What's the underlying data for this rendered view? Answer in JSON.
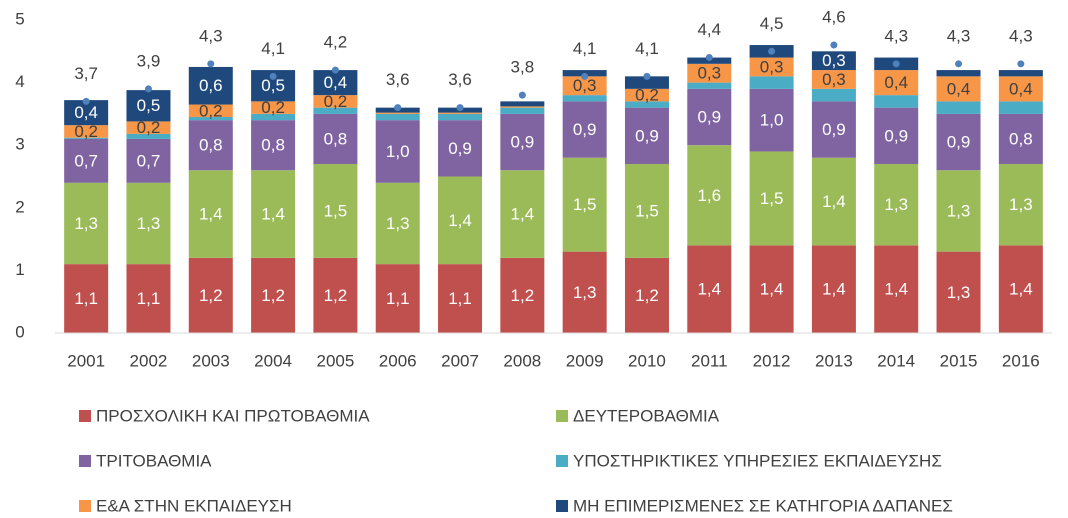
{
  "chart_data": {
    "type": "stacked_bar",
    "categories": [
      "2001",
      "2002",
      "2003",
      "2004",
      "2005",
      "2006",
      "2007",
      "2008",
      "2009",
      "2010",
      "2011",
      "2012",
      "2013",
      "2014",
      "2015",
      "2016"
    ],
    "ylim": [
      0,
      5
    ],
    "yticks": [
      0,
      1,
      2,
      3,
      4,
      5
    ],
    "grid": false,
    "legend": "bottom",
    "series": [
      {
        "name": "ΠΡΟΣΧΟΛΙΚΗ ΚΑΙ ΠΡΩΤΟΒΑΘΜΙΑ",
        "color": "#c0504d",
        "label_color": "#ffffff",
        "values": [
          1.1,
          1.1,
          1.2,
          1.2,
          1.2,
          1.1,
          1.1,
          1.2,
          1.3,
          1.2,
          1.4,
          1.4,
          1.4,
          1.4,
          1.3,
          1.4
        ],
        "value_labels": [
          "1,1",
          "1,1",
          "1,2",
          "1,2",
          "1,2",
          "1,1",
          "1,1",
          "1,2",
          "1,3",
          "1,2",
          "1,4",
          "1,4",
          "1,4",
          "1,4",
          "1,3",
          "1,4"
        ]
      },
      {
        "name": "ΔΕΥΤΕΡΟΒΑΘΜΙΑ",
        "color": "#9bbb59",
        "label_color": "#ffffff",
        "values": [
          1.3,
          1.3,
          1.4,
          1.4,
          1.5,
          1.3,
          1.4,
          1.4,
          1.5,
          1.5,
          1.6,
          1.5,
          1.4,
          1.3,
          1.3,
          1.3
        ],
        "value_labels": [
          "1,3",
          "1,3",
          "1,4",
          "1,4",
          "1,5",
          "1,3",
          "1,4",
          "1,4",
          "1,5",
          "1,5",
          "1,6",
          "1,5",
          "1,4",
          "1,3",
          "1,3",
          "1,3"
        ]
      },
      {
        "name": "ΤΡΙΤΟΒΑΘΜΙΑ",
        "color": "#8064a2",
        "label_color": "#ffffff",
        "values": [
          0.7,
          0.7,
          0.8,
          0.8,
          0.8,
          1.0,
          0.9,
          0.9,
          0.9,
          0.9,
          0.9,
          1.0,
          0.9,
          0.9,
          0.9,
          0.8
        ],
        "value_labels": [
          "0,7",
          "0,7",
          "0,8",
          "0,8",
          "0,8",
          "1,0",
          "0,9",
          "0,9",
          "0,9",
          "0,9",
          "0,9",
          "1,0",
          "0,9",
          "0,9",
          "0,9",
          "0,8"
        ]
      },
      {
        "name": "ΥΠΟΣΤΗΡΙΚΤΙΚΕΣ ΥΠΗΡΕΣΙΕΣ ΕΚΠΑΙΔΕΥΣΗΣ",
        "color": "#4bacc6",
        "label_color": "#ffffff",
        "values": [
          0.02,
          0.08,
          0.05,
          0.1,
          0.1,
          0.1,
          0.1,
          0.1,
          0.1,
          0.1,
          0.1,
          0.2,
          0.2,
          0.2,
          0.2,
          0.2
        ],
        "value_labels": [
          null,
          null,
          null,
          null,
          null,
          null,
          null,
          null,
          null,
          null,
          null,
          null,
          null,
          null,
          null,
          null
        ]
      },
      {
        "name": "Ε&Α ΣΤΗΝ ΕΚΠΑΙΔΕΥΣΗ",
        "color": "#f79646",
        "label_color": "#404040",
        "values": [
          0.2,
          0.2,
          0.2,
          0.2,
          0.2,
          0.02,
          0.02,
          0.02,
          0.3,
          0.2,
          0.3,
          0.3,
          0.3,
          0.4,
          0.4,
          0.4
        ],
        "value_labels": [
          "0,2",
          "0,2",
          "0,2",
          "0,2",
          "0,2",
          null,
          null,
          null,
          "0,3",
          "0,2",
          "0,3",
          "0,3",
          "0,3",
          "0,4",
          "0,4",
          "0,4"
        ]
      },
      {
        "name": "ΜΗ ΕΠΙΜΕΡΙΣΜΕΝΕΣ ΣΕ ΚΑΤΗΓΟΡΙΑ ΔΑΠΑΝΕΣ",
        "color": "#1f497d",
        "label_color": "#ffffff",
        "values": [
          0.4,
          0.5,
          0.6,
          0.5,
          0.4,
          0.08,
          0.08,
          0.08,
          0.1,
          0.2,
          0.1,
          0.2,
          0.3,
          0.2,
          0.1,
          0.1
        ],
        "value_labels": [
          "0,4",
          "0,5",
          "0,6",
          "0,5",
          "0,4",
          null,
          null,
          null,
          null,
          null,
          null,
          null,
          "0,3",
          null,
          null,
          null
        ]
      }
    ],
    "totals": {
      "color": "#4f81bd",
      "values": [
        3.7,
        3.9,
        4.3,
        4.1,
        4.2,
        3.6,
        3.6,
        3.8,
        4.1,
        4.1,
        4.4,
        4.5,
        4.6,
        4.3,
        4.3,
        4.3
      ],
      "value_labels": [
        "3,7",
        "3,9",
        "4,3",
        "4,1",
        "4,2",
        "3,6",
        "3,6",
        "3,8",
        "4,1",
        "4,1",
        "4,4",
        "4,5",
        "4,6",
        "4,3",
        "4,3",
        "4,3"
      ]
    }
  }
}
